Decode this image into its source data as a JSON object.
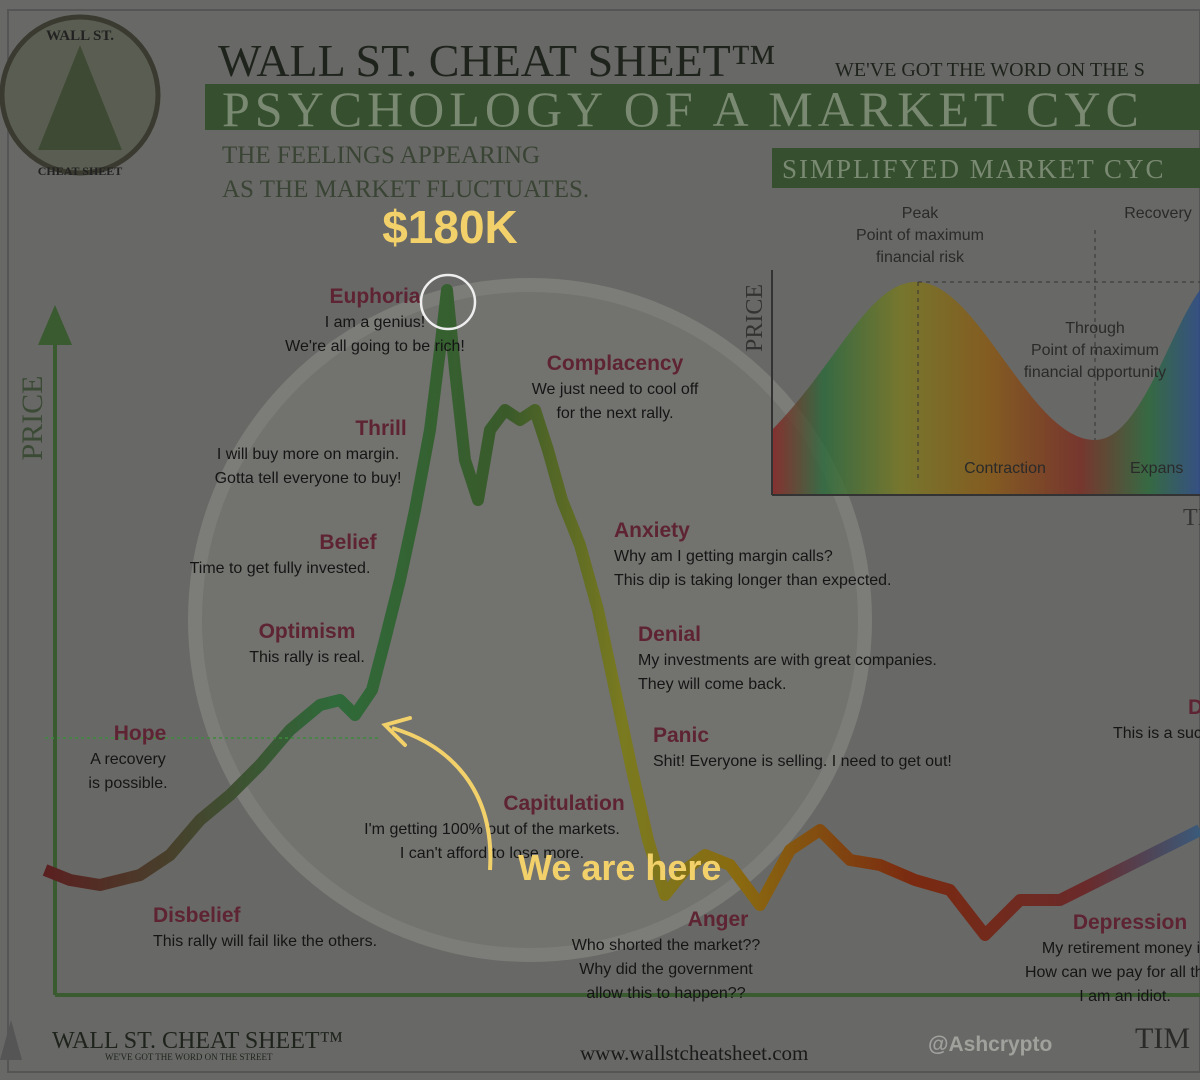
{
  "header": {
    "brand": "WALL ST. CHEAT SHEET™",
    "tagline": "WE'VE GOT THE WORD ON THE S",
    "banner": "PSYCHOLOGY OF A MARKET CYC",
    "subtitle": [
      "THE FEELINGS APPEARING",
      "AS THE MARKET FLUCTUATES."
    ],
    "logo_top": "WALL ST.",
    "logo_bottom": "CHEAT SHEET"
  },
  "axes": {
    "y": "PRICE",
    "x": "TIM"
  },
  "stages": [
    {
      "title": "Euphoria",
      "lines": [
        "I am a genius!",
        "We're all going to be rich!"
      ]
    },
    {
      "title": "Complacency",
      "lines": [
        "We just need to cool off",
        "for the next rally."
      ]
    },
    {
      "title": "Thrill",
      "lines": [
        "I will buy more on margin.",
        "Gotta tell everyone to buy!"
      ]
    },
    {
      "title": "Belief",
      "lines": [
        "Time to get fully invested."
      ]
    },
    {
      "title": "Anxiety",
      "lines": [
        "Why am I getting margin calls?",
        "This dip is taking longer than expected."
      ]
    },
    {
      "title": "Optimism",
      "lines": [
        "This rally is real."
      ]
    },
    {
      "title": "Denial",
      "lines": [
        "My investments are with great companies.",
        "They will come back."
      ]
    },
    {
      "title": "Hope",
      "lines": [
        "A recovery",
        "is possible."
      ]
    },
    {
      "title": "Panic",
      "lines": [
        "Shit! Everyone is selling. I need to get out!"
      ]
    },
    {
      "title": "Capitulation",
      "lines": [
        "I'm getting 100% out of the markets.",
        "I can't afford to lose more."
      ]
    },
    {
      "title": "Disbelief",
      "lines": [
        "This rally will fail like the others."
      ]
    },
    {
      "title": "Anger",
      "lines": [
        "Who shorted the market??",
        "Why did the government",
        "allow this to happen??"
      ]
    },
    {
      "title": "Depression",
      "lines": [
        "My retirement money is",
        "How can we pay for all this r",
        "I am an idiot."
      ]
    },
    {
      "title": "D",
      "lines": [
        "This is a suc"
      ]
    }
  ],
  "inset": {
    "title": "SIMPLIFYED MARKET CYC",
    "axis_y": "PRICE",
    "axis_x": "TI",
    "peak": [
      "Peak",
      "Point of maximum",
      "financial risk"
    ],
    "recovery": "Recovery",
    "through": [
      "Through",
      "Point of maximum",
      "financial opportunity"
    ],
    "contraction": "Contraction",
    "expansion": "Expans"
  },
  "overlay": {
    "price_callout": "$180K",
    "pointer": "We are here",
    "handle": "@Ashcrypto"
  },
  "footer": {
    "brand": "WALL ST. CHEAT SHEET™",
    "tagline": "WE'VE GOT THE WORD ON THE STREET",
    "url": "www.wallstcheatsheet.com"
  }
}
